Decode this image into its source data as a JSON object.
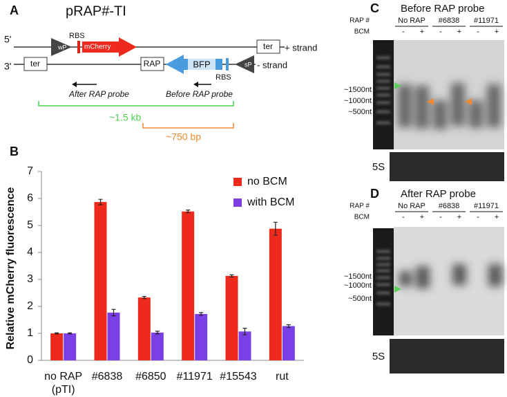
{
  "panel_a": {
    "letter": "A",
    "title": "pRAP#-TI",
    "five_prime": "5'",
    "three_prime": "3'",
    "wp": "wP",
    "rbs_top": "RBS",
    "mcherry": "mCherry",
    "ter_top": "ter",
    "plus_strand": "+ strand",
    "ter_bottom": "ter",
    "rap": "RAP",
    "bfp": "BFP",
    "rbs_bottom": "RBS",
    "sp": "sP",
    "minus_strand": "- strand",
    "after_probe": "After RAP probe",
    "before_probe": "Before RAP probe",
    "span_long": "~1.5 kb",
    "span_short": "~750 bp"
  },
  "panel_b": {
    "letter": "B"
  },
  "chart_data": {
    "type": "bar",
    "ylabel": "Relative mCherry fluorescence",
    "categories": [
      "no RAP (pTI)",
      "#6838",
      "#6850",
      "#11971",
      "#15543",
      "rut"
    ],
    "series": [
      {
        "name": "no BCM",
        "color": "#ee2a1c",
        "values": [
          1.0,
          5.87,
          2.33,
          5.52,
          3.13,
          4.88
        ],
        "errors": [
          0.02,
          0.1,
          0.04,
          0.05,
          0.04,
          0.24
        ]
      },
      {
        "name": "with BCM",
        "color": "#7b3fe6",
        "values": [
          1.0,
          1.77,
          1.03,
          1.72,
          1.07,
          1.27
        ],
        "errors": [
          0.02,
          0.12,
          0.05,
          0.05,
          0.12,
          0.05
        ]
      }
    ],
    "ylim": [
      0,
      7
    ],
    "yticks": [
      0,
      1,
      2,
      3,
      4,
      5,
      6,
      7
    ],
    "legend": "upper right"
  },
  "panel_c": {
    "letter": "C",
    "title": "Before RAP probe",
    "rap_label": "RAP #",
    "groups": [
      "No RAP",
      "#6838",
      "#11971"
    ],
    "bcm_label": "BCM",
    "bcm_marks": [
      "-",
      "+",
      "-",
      "+",
      "-",
      "+"
    ],
    "sizes": [
      "~1500nt",
      "~1000nt",
      "~500nt"
    ],
    "loading": "5S"
  },
  "panel_d": {
    "letter": "D",
    "title": "After RAP probe",
    "rap_label": "RAP #",
    "groups": [
      "No RAP",
      "#6838",
      "#11971"
    ],
    "bcm_label": "BCM",
    "bcm_marks": [
      "-",
      "+",
      "-",
      "+",
      "-",
      "+"
    ],
    "sizes": [
      "~1500nt",
      "~1000nt",
      "~500nt"
    ],
    "loading": "5S"
  }
}
